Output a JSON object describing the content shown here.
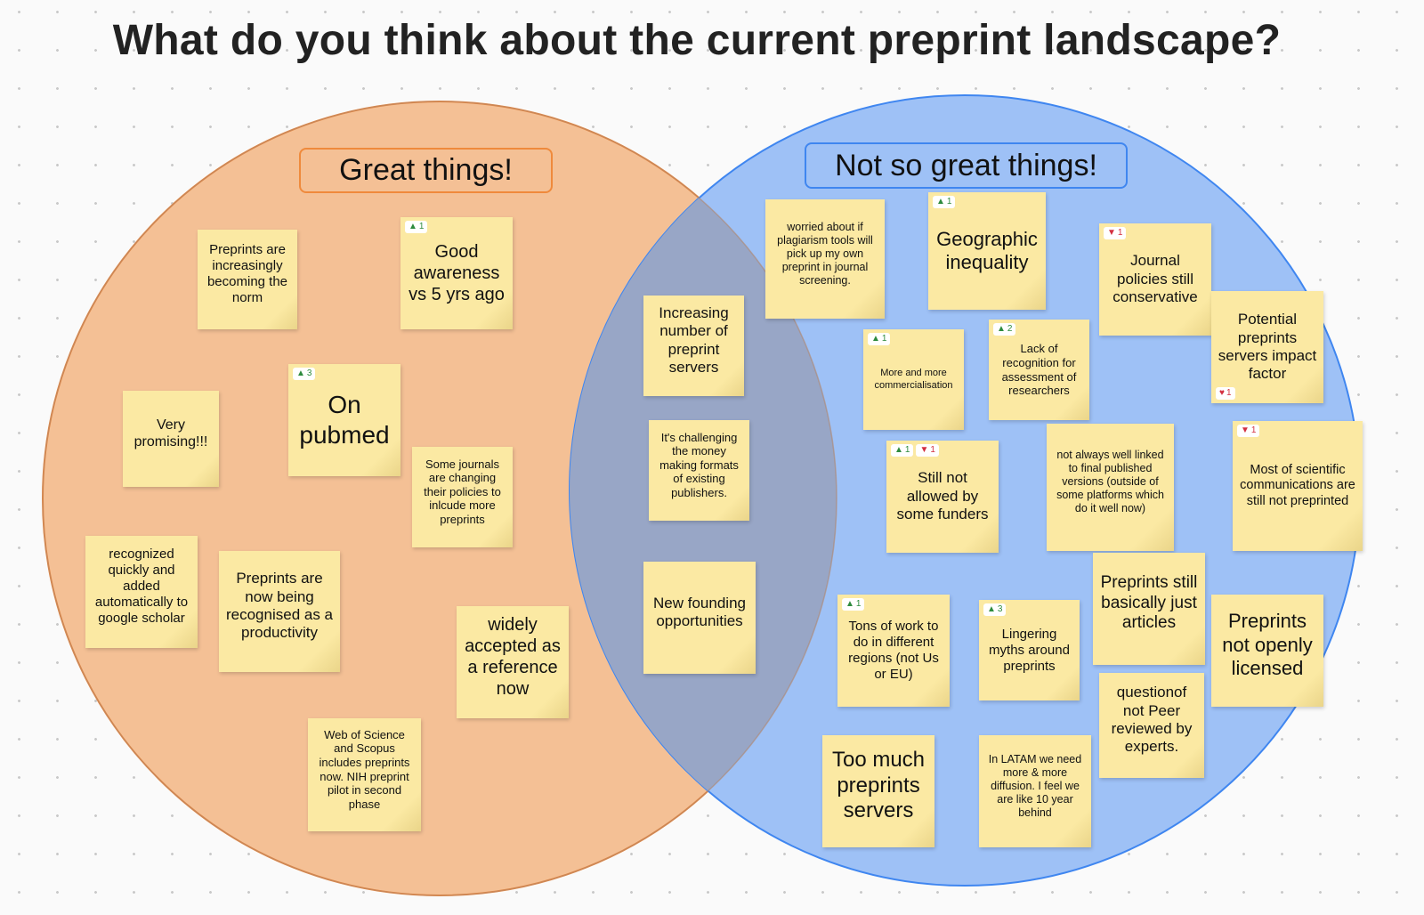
{
  "title": "What do you think about the current preprint landscape?",
  "colors": {
    "left_circle": "#f4c095",
    "left_border": "#ef8a3c",
    "right_circle": "#9ec1f6",
    "right_border": "#3f86f0",
    "overlap": "#98a6c6",
    "note": "#fbe9a3"
  },
  "left_label": "Great things!",
  "right_label": "Not so great things!",
  "notes": [
    {
      "text": "Preprints are increasingly becoming the norm"
    },
    {
      "text": "Good awareness vs 5 yrs ago",
      "votes": {
        "up": 1
      }
    },
    {
      "text": "Very promising!!!"
    },
    {
      "text": "On pubmed",
      "votes": {
        "up": 3
      }
    },
    {
      "text": "Some journals are changing their policies to inlcude more preprints"
    },
    {
      "text": "recognized quickly and added automatically to google scholar"
    },
    {
      "text": "Preprints are now being recognised as a productivity"
    },
    {
      "text": "widely accepted as a reference now"
    },
    {
      "text": "Web of Science and Scopus includes preprints now. NIH preprint pilot in second phase"
    },
    {
      "text": "Increasing number of preprint servers"
    },
    {
      "text": "It's challenging the money making formats of existing publishers."
    },
    {
      "text": "New founding opportunities"
    },
    {
      "text": "worried about if plagiarism tools will pick up my own preprint in journal screening."
    },
    {
      "text": "Geographic inequality",
      "votes": {
        "up": 1
      }
    },
    {
      "text": "Journal policies still conservative",
      "votes": {
        "down": 1
      }
    },
    {
      "text": "Potential preprints servers impact factor",
      "votes": {
        "heart": 1
      }
    },
    {
      "text": "More and more commercialisation",
      "votes": {
        "up": 1
      }
    },
    {
      "text": "Lack of recognition for assessment of researchers",
      "votes": {
        "up": 2
      }
    },
    {
      "text": "Still not allowed by some funders",
      "votes": {
        "up": 1,
        "down": 1
      }
    },
    {
      "text": "not always well linked to final published versions (outside of some platforms which do it well now)"
    },
    {
      "text": "Most of scientific communications are still not preprinted",
      "votes": {
        "down": 1
      }
    },
    {
      "text": "Tons of work to do in different regions (not Us or EU)",
      "votes": {
        "up": 1
      }
    },
    {
      "text": "Lingering myths around preprints",
      "votes": {
        "up": 3
      }
    },
    {
      "text": "Preprints still basically just articles"
    },
    {
      "text": "Preprints not openly licensed"
    },
    {
      "text": "questionof not Peer reviewed by experts."
    },
    {
      "text": "Too much preprints servers"
    },
    {
      "text": "In LATAM we need more & more diffusion. I feel we are like 10 year behind"
    }
  ]
}
